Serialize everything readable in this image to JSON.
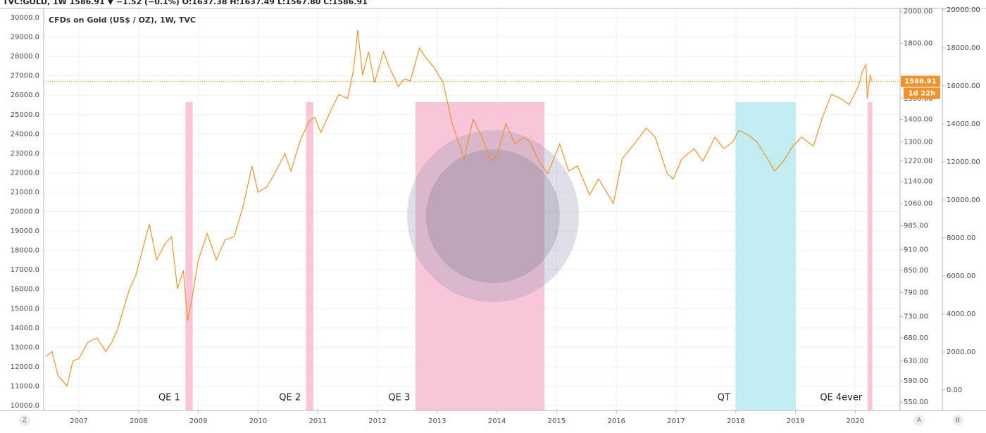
{
  "chart_data": {
    "type": "line",
    "header": "TVC:GOLD, 1W 1586.91 ▼ −1.52 (−0.1%) O:1637.38 H:1637.49 L:1567.80 C:1586.91",
    "xlim": [
      2006.41,
      2020.75
    ],
    "xticks": [
      2007,
      2008,
      2009,
      2010,
      2011,
      2012,
      2013,
      2014,
      2015,
      2016,
      2017,
      2018,
      2019,
      2020
    ],
    "ylim": [
      9746,
      30472
    ],
    "yticks": [
      {
        "value": 10000,
        "label": "10000.0"
      },
      {
        "value": 11000,
        "label": "11000.0"
      },
      {
        "value": 12000,
        "label": "12000.0"
      },
      {
        "value": 13000,
        "label": "13000.0"
      },
      {
        "value": 14000,
        "label": "14000.0"
      },
      {
        "value": 15000,
        "label": "15000.0"
      },
      {
        "value": 16000,
        "label": "16000.0"
      },
      {
        "value": 17000,
        "label": "17000.0"
      },
      {
        "value": 18000,
        "label": "18000.0"
      },
      {
        "value": 19000,
        "label": "19000.0"
      },
      {
        "value": 20000,
        "label": "20000.0"
      },
      {
        "value": 21000,
        "label": "21000.0"
      },
      {
        "value": 22000,
        "label": "22000.0"
      },
      {
        "value": 23000,
        "label": "23000.0"
      },
      {
        "value": 24000,
        "label": "24000.0"
      },
      {
        "value": 25000,
        "label": "25000.0"
      },
      {
        "value": 26000,
        "label": "26000.0"
      },
      {
        "value": 27000,
        "label": "27000.0"
      },
      {
        "value": 28000,
        "label": "28000.0"
      },
      {
        "value": 29000,
        "label": "29000.0"
      },
      {
        "value": 30000,
        "label": "30000.0"
      }
    ],
    "y2lim": [
      535,
      2019
    ],
    "y2log": true,
    "y2ticks": [
      {
        "value": 550,
        "label": "550.00"
      },
      {
        "value": 590,
        "label": "590.00"
      },
      {
        "value": 630,
        "label": "630.00"
      },
      {
        "value": 680,
        "label": "680.00"
      },
      {
        "value": 730,
        "label": "730.00"
      },
      {
        "value": 790,
        "label": "790.00"
      },
      {
        "value": 850,
        "label": "850.00"
      },
      {
        "value": 910,
        "label": "910.00"
      },
      {
        "value": 985,
        "label": "985.00"
      },
      {
        "value": 1060,
        "label": "1060.00"
      },
      {
        "value": 1140,
        "label": "1140.00"
      },
      {
        "value": 1220,
        "label": "1220.00"
      },
      {
        "value": 1300,
        "label": "1300.00"
      },
      {
        "value": 1400,
        "label": "1400.00"
      },
      {
        "value": 1500,
        "label": "1500.00"
      },
      {
        "value": 1800,
        "label": "1800.00"
      },
      {
        "value": 2000,
        "label": "2000.00"
      }
    ],
    "y3lim": [
      -1074,
      20074
    ],
    "y3ticks": [
      {
        "value": 0,
        "label": "0.00"
      },
      {
        "value": 2000,
        "label": "2000.00"
      },
      {
        "value": 4000,
        "label": "4000.00"
      },
      {
        "value": 6000,
        "label": "6000.00"
      },
      {
        "value": 8000,
        "label": "8000.00"
      },
      {
        "value": 10000,
        "label": "10000.00"
      },
      {
        "value": 12000,
        "label": "12000.00"
      },
      {
        "value": 14000,
        "label": "14000.00"
      },
      {
        "value": 16000,
        "label": "16000.00"
      },
      {
        "value": 18000,
        "label": "18000.00"
      },
      {
        "value": 20000,
        "label": "20000.00"
      }
    ],
    "grid": true,
    "x": [
      2006.45,
      2006.55,
      2006.65,
      2006.8,
      2006.9,
      2007.0,
      2007.15,
      2007.3,
      2007.45,
      2007.55,
      2007.65,
      2007.75,
      2007.85,
      2007.95,
      2008.05,
      2008.18,
      2008.3,
      2008.45,
      2008.55,
      2008.65,
      2008.75,
      2008.82,
      2008.9,
      2009.0,
      2009.15,
      2009.3,
      2009.45,
      2009.6,
      2009.75,
      2009.9,
      2010.0,
      2010.15,
      2010.3,
      2010.45,
      2010.55,
      2010.7,
      2010.85,
      2010.95,
      2011.05,
      2011.2,
      2011.35,
      2011.5,
      2011.6,
      2011.67,
      2011.75,
      2011.85,
      2011.95,
      2012.1,
      2012.2,
      2012.35,
      2012.45,
      2012.55,
      2012.7,
      2012.8,
      2012.95,
      2013.1,
      2013.25,
      2013.45,
      2013.6,
      2013.75,
      2013.9,
      2014.0,
      2014.15,
      2014.3,
      2014.45,
      2014.55,
      2014.7,
      2014.85,
      2015.05,
      2015.2,
      2015.35,
      2015.55,
      2015.7,
      2015.95,
      2016.1,
      2016.3,
      2016.5,
      2016.65,
      2016.85,
      2016.95,
      2017.1,
      2017.3,
      2017.45,
      2017.65,
      2017.8,
      2017.95,
      2018.05,
      2018.2,
      2018.35,
      2018.5,
      2018.65,
      2018.8,
      2018.95,
      2019.1,
      2019.3,
      2019.45,
      2019.6,
      2019.75,
      2019.9,
      2020.05,
      2020.12,
      2020.18,
      2020.2,
      2020.25,
      2020.28
    ],
    "series": [
      {
        "name": "CFDs on Gold (US$ / OZ), 1W, TVC",
        "color": "#f0922b",
        "axis": "y2",
        "values": [
          640,
          650,
          600,
          580,
          630,
          635,
          670,
          680,
          650,
          670,
          700,
          750,
          800,
          835,
          900,
          990,
          880,
          930,
          950,
          800,
          850,
          720,
          780,
          880,
          960,
          880,
          940,
          950,
          1050,
          1200,
          1100,
          1120,
          1180,
          1250,
          1180,
          1300,
          1390,
          1410,
          1340,
          1430,
          1520,
          1500,
          1650,
          1880,
          1620,
          1750,
          1580,
          1750,
          1660,
          1560,
          1600,
          1590,
          1770,
          1720,
          1660,
          1580,
          1380,
          1230,
          1400,
          1320,
          1220,
          1240,
          1380,
          1290,
          1320,
          1300,
          1220,
          1170,
          1290,
          1180,
          1200,
          1090,
          1150,
          1060,
          1230,
          1290,
          1360,
          1320,
          1170,
          1150,
          1230,
          1270,
          1220,
          1320,
          1270,
          1300,
          1350,
          1330,
          1300,
          1240,
          1180,
          1220,
          1280,
          1320,
          1280,
          1410,
          1520,
          1500,
          1470,
          1560,
          1640,
          1680,
          1500,
          1620,
          1587
        ]
      }
    ],
    "last_price": 1586.91,
    "countdown": "1d 22h",
    "regions": [
      {
        "label": "QE 1",
        "start": 2008.79,
        "end": 2008.9,
        "top": 1480,
        "color": "#f8c6d8"
      },
      {
        "label": "QE 2",
        "start": 2010.81,
        "end": 2010.92,
        "top": 1480,
        "color": "#f8c6d8"
      },
      {
        "label": "QE 3",
        "start": 2012.64,
        "end": 2014.79,
        "top": 1480,
        "color": "#f8c6d8"
      },
      {
        "label": "QT",
        "start": 2018.0,
        "end": 2019.0,
        "top": 1480,
        "color": "#c2eef3"
      },
      {
        "label": "QE 4ever",
        "start": 2020.21,
        "end": 2020.28,
        "top": 1480,
        "color": "#f8c6d8"
      }
    ],
    "buttons": [
      "Z",
      "A",
      "B"
    ]
  }
}
